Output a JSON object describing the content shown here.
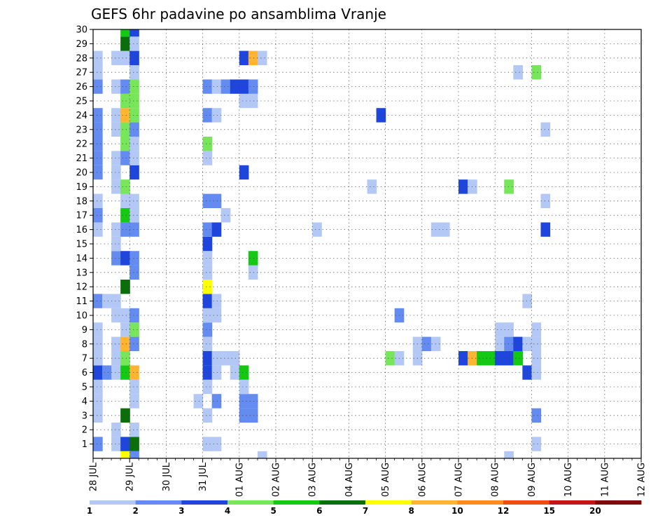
{
  "chart_data": {
    "type": "heatmap",
    "title": "GEFS 6hr padavine po ansamblima Vranje",
    "x_tick_labels": [
      "28 JUL",
      "29 JUL",
      "30 JUL",
      "31 JUL",
      "01 AUG",
      "02 AUG",
      "03 AUG",
      "04 AUG",
      "05 AUG",
      "06 AUG",
      "07 AUG",
      "08 AUG",
      "09 AUG",
      "10 AUG",
      "11 AUG",
      "12 AUG"
    ],
    "y_tick_labels": [
      "1",
      "2",
      "3",
      "4",
      "5",
      "6",
      "7",
      "8",
      "9",
      "10",
      "11",
      "12",
      "13",
      "14",
      "15",
      "16",
      "17",
      "18",
      "19",
      "20",
      "21",
      "22",
      "23",
      "24",
      "25",
      "26",
      "27",
      "28",
      "29",
      "30"
    ],
    "y_range": [
      0,
      30
    ],
    "x_range_days": [
      0,
      15
    ],
    "grid": true,
    "colorbar": {
      "labels": [
        "1",
        "2",
        "3",
        "4",
        "5",
        "6",
        "7",
        "8",
        "10",
        "12",
        "15",
        "20"
      ],
      "colors": [
        "#b4c8f5",
        "#648cf0",
        "#1e46dc",
        "#78e65a",
        "#14c814",
        "#0a6e0a",
        "#ffff00",
        "#ffb432",
        "#ff8c1e",
        "#f04b14",
        "#c81414",
        "#7d0a0a"
      ],
      "position": "bottom"
    },
    "cells": [
      [
        0,
        1,
        1
      ],
      [
        0,
        1,
        2
      ],
      [
        0,
        3,
        1
      ],
      [
        0,
        4,
        1
      ],
      [
        0,
        5,
        1
      ],
      [
        0,
        6,
        3
      ],
      [
        0,
        7,
        1
      ],
      [
        0,
        8,
        1
      ],
      [
        0,
        9,
        1
      ],
      [
        0,
        11,
        2
      ],
      [
        0,
        16,
        1
      ],
      [
        0,
        17,
        2
      ],
      [
        0,
        18,
        1
      ],
      [
        0,
        20,
        2
      ],
      [
        0,
        21,
        2
      ],
      [
        0,
        22,
        2
      ],
      [
        0,
        23,
        2
      ],
      [
        0,
        24,
        2
      ],
      [
        0,
        26,
        2
      ],
      [
        0,
        27,
        1
      ],
      [
        0,
        28,
        1
      ],
      [
        1,
        11,
        1
      ],
      [
        1,
        6,
        2
      ],
      [
        2,
        1,
        1
      ],
      [
        2,
        2,
        1
      ],
      [
        2,
        6,
        1
      ],
      [
        2,
        7,
        1
      ],
      [
        2,
        8,
        1
      ],
      [
        2,
        10,
        1
      ],
      [
        2,
        11,
        1
      ],
      [
        2,
        14,
        2
      ],
      [
        2,
        15,
        1
      ],
      [
        2,
        16,
        1
      ],
      [
        2,
        19,
        1
      ],
      [
        2,
        20,
        1
      ],
      [
        2,
        21,
        1
      ],
      [
        2,
        23,
        1
      ],
      [
        2,
        24,
        1
      ],
      [
        2,
        26,
        1
      ],
      [
        2,
        28,
        1
      ],
      [
        3,
        0,
        7
      ],
      [
        3,
        1,
        3
      ],
      [
        3,
        3,
        6
      ],
      [
        3,
        6,
        5
      ],
      [
        3,
        7,
        4
      ],
      [
        3,
        8,
        8
      ],
      [
        3,
        9,
        1
      ],
      [
        3,
        10,
        1
      ],
      [
        3,
        12,
        6
      ],
      [
        3,
        14,
        3
      ],
      [
        3,
        16,
        2
      ],
      [
        3,
        17,
        5
      ],
      [
        3,
        18,
        1
      ],
      [
        3,
        19,
        4
      ],
      [
        3,
        21,
        2
      ],
      [
        3,
        22,
        4
      ],
      [
        3,
        23,
        4
      ],
      [
        3,
        24,
        8
      ],
      [
        3,
        25,
        4
      ],
      [
        3,
        26,
        2
      ],
      [
        3,
        28,
        1
      ],
      [
        3,
        29,
        6
      ],
      [
        3,
        30,
        5
      ],
      [
        4,
        0,
        2
      ],
      [
        4,
        1,
        6
      ],
      [
        4,
        2,
        1
      ],
      [
        4,
        4,
        1
      ],
      [
        4,
        5,
        1
      ],
      [
        4,
        6,
        8
      ],
      [
        4,
        8,
        2
      ],
      [
        4,
        9,
        4
      ],
      [
        4,
        10,
        2
      ],
      [
        4,
        13,
        2
      ],
      [
        4,
        14,
        2
      ],
      [
        4,
        16,
        2
      ],
      [
        4,
        17,
        1
      ],
      [
        4,
        18,
        1
      ],
      [
        4,
        20,
        3
      ],
      [
        4,
        21,
        1
      ],
      [
        4,
        22,
        1
      ],
      [
        4,
        23,
        2
      ],
      [
        4,
        24,
        4
      ],
      [
        4,
        25,
        4
      ],
      [
        4,
        26,
        4
      ],
      [
        4,
        27,
        1
      ],
      [
        4,
        28,
        3
      ],
      [
        4,
        29,
        1
      ],
      [
        4,
        30,
        3
      ],
      [
        11,
        4,
        1
      ],
      [
        12,
        1,
        1
      ],
      [
        12,
        3,
        1
      ],
      [
        12,
        5,
        1
      ],
      [
        12,
        6,
        3
      ],
      [
        12,
        7,
        3
      ],
      [
        12,
        8,
        1
      ],
      [
        12,
        9,
        2
      ],
      [
        12,
        10,
        1
      ],
      [
        12,
        11,
        3
      ],
      [
        12,
        12,
        7
      ],
      [
        12,
        13,
        1
      ],
      [
        12,
        14,
        1
      ],
      [
        12,
        15,
        3
      ],
      [
        12,
        16,
        2
      ],
      [
        12,
        18,
        2
      ],
      [
        12,
        21,
        1
      ],
      [
        12,
        22,
        4
      ],
      [
        12,
        24,
        2
      ],
      [
        12,
        26,
        2
      ],
      [
        13,
        1,
        1
      ],
      [
        13,
        4,
        2
      ],
      [
        13,
        6,
        1
      ],
      [
        13,
        7,
        1
      ],
      [
        13,
        10,
        1
      ],
      [
        13,
        11,
        1
      ],
      [
        13,
        16,
        3
      ],
      [
        13,
        18,
        2
      ],
      [
        13,
        24,
        1
      ],
      [
        13,
        26,
        1
      ],
      [
        14,
        7,
        1
      ],
      [
        14,
        17,
        1
      ],
      [
        14,
        26,
        2
      ],
      [
        15,
        6,
        1
      ],
      [
        15,
        7,
        1
      ],
      [
        15,
        26,
        3
      ],
      [
        16,
        3,
        2
      ],
      [
        16,
        4,
        2
      ],
      [
        16,
        5,
        1
      ],
      [
        16,
        6,
        5
      ],
      [
        16,
        20,
        3
      ],
      [
        16,
        25,
        1
      ],
      [
        16,
        26,
        3
      ],
      [
        16,
        28,
        3
      ],
      [
        17,
        3,
        2
      ],
      [
        17,
        4,
        2
      ],
      [
        17,
        13,
        1
      ],
      [
        17,
        14,
        5
      ],
      [
        17,
        25,
        1
      ],
      [
        17,
        26,
        2
      ],
      [
        17,
        28,
        8
      ],
      [
        18,
        0,
        1
      ],
      [
        18,
        28,
        1
      ],
      [
        24,
        16,
        1
      ],
      [
        30,
        19,
        1
      ],
      [
        31,
        24,
        3
      ],
      [
        32,
        7,
        4
      ],
      [
        33,
        7,
        1
      ],
      [
        33,
        10,
        2
      ],
      [
        35,
        7,
        1
      ],
      [
        35,
        8,
        1
      ],
      [
        36,
        8,
        2
      ],
      [
        37,
        8,
        1
      ],
      [
        37,
        16,
        1
      ],
      [
        38,
        16,
        1
      ],
      [
        40,
        7,
        3
      ],
      [
        40,
        19,
        3
      ],
      [
        41,
        7,
        8
      ],
      [
        41,
        19,
        1
      ],
      [
        42,
        7,
        5
      ],
      [
        43,
        7,
        5
      ],
      [
        44,
        7,
        3
      ],
      [
        44,
        8,
        1
      ],
      [
        44,
        9,
        1
      ],
      [
        45,
        0,
        1
      ],
      [
        45,
        7,
        3
      ],
      [
        45,
        8,
        2
      ],
      [
        45,
        9,
        1
      ],
      [
        45,
        19,
        4
      ],
      [
        46,
        7,
        5
      ],
      [
        46,
        8,
        3
      ],
      [
        46,
        27,
        1
      ],
      [
        47,
        6,
        3
      ],
      [
        47,
        8,
        1
      ],
      [
        47,
        11,
        1
      ],
      [
        48,
        1,
        1
      ],
      [
        48,
        3,
        2
      ],
      [
        48,
        6,
        1
      ],
      [
        48,
        7,
        1
      ],
      [
        48,
        8,
        1
      ],
      [
        48,
        9,
        1
      ],
      [
        48,
        27,
        4
      ],
      [
        49,
        16,
        3
      ],
      [
        49,
        18,
        1
      ],
      [
        49,
        23,
        1
      ]
    ]
  }
}
